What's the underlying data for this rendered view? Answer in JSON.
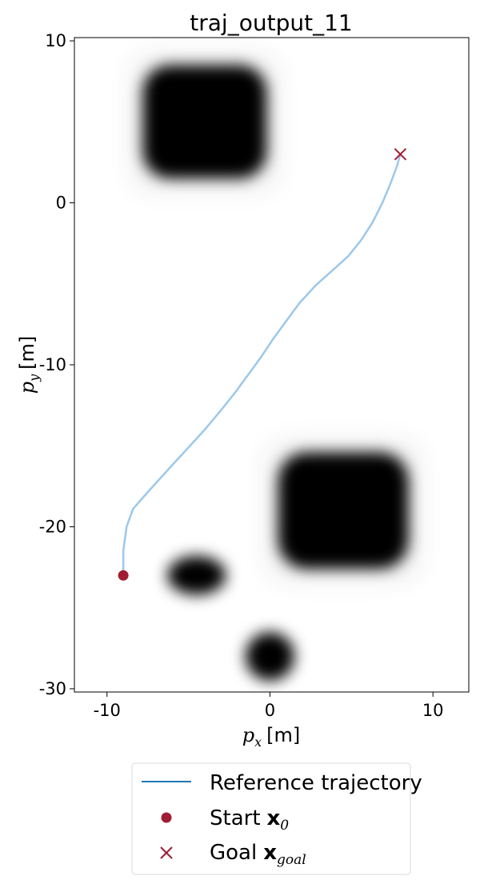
{
  "chart_data": {
    "type": "line",
    "title": "traj_output_11",
    "xlabel": {
      "symbol": "p",
      "sub": "x",
      "unit": "[m]"
    },
    "ylabel": {
      "symbol": "p",
      "sub": "y",
      "unit": "[m]"
    },
    "xlim": [
      -12,
      12.2
    ],
    "ylim": [
      -30.2,
      10.2
    ],
    "xticks": [
      -10,
      0,
      10
    ],
    "yticks": [
      10,
      0,
      -10,
      -20,
      -30
    ],
    "grid": false,
    "legend_position": "bottom-center",
    "colors": {
      "trajectory": "#9cc8ea",
      "reference": "#1f77b4",
      "marker": "#a11d33",
      "obstacle": "#000000"
    },
    "obstacles": [
      {
        "shape": "rounded-square",
        "center": [
          -4.0,
          5.0
        ],
        "half_size": [
          3.8,
          3.5
        ]
      },
      {
        "shape": "rounded-square",
        "center": [
          4.5,
          -19.0
        ],
        "half_size": [
          4.0,
          3.6
        ]
      },
      {
        "shape": "ellipse",
        "center": [
          -4.5,
          -23.0
        ],
        "radius": [
          1.8,
          1.2
        ]
      },
      {
        "shape": "circle",
        "center": [
          0.0,
          -28.0
        ],
        "radius": [
          1.5,
          1.5
        ]
      }
    ],
    "series": [
      {
        "name": "Reference trajectory",
        "x": [
          -9.0,
          -9.0,
          -8.8,
          -8.4,
          -7.8,
          -7.0,
          -6.0,
          -5.0,
          -4.0,
          -3.0,
          -2.2,
          -1.4,
          -0.6,
          0.2,
          1.0,
          1.8,
          2.8,
          3.8,
          4.8,
          5.6,
          6.3,
          6.9,
          7.4,
          7.8,
          8.0
        ],
        "y": [
          -23.0,
          -21.5,
          -20.0,
          -18.9,
          -18.2,
          -17.3,
          -16.2,
          -15.1,
          -14.0,
          -12.8,
          -11.8,
          -10.7,
          -9.6,
          -8.4,
          -7.3,
          -6.2,
          -5.1,
          -4.2,
          -3.3,
          -2.3,
          -1.2,
          0.0,
          1.2,
          2.3,
          3.0
        ]
      }
    ],
    "start": {
      "x": -9.0,
      "y": -23.0
    },
    "goal": {
      "x": 8.0,
      "y": 3.0
    },
    "legend": {
      "reference": "Reference trajectory",
      "start_word": "Start",
      "start_symbol": "x",
      "start_sub": "0",
      "goal_word": "Goal",
      "goal_symbol": "x",
      "goal_sub": "goal"
    }
  }
}
